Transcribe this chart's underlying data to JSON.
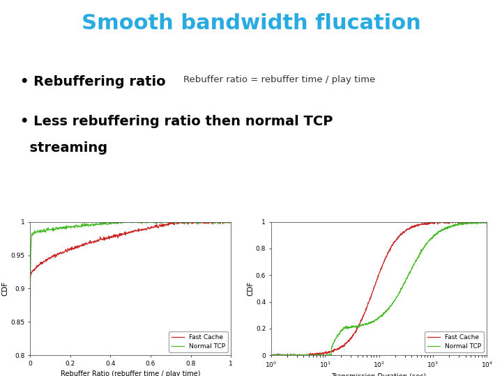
{
  "title": "Smooth bandwidth flucation",
  "title_color": "#29ABE2",
  "bullet1": "Rebuffering ratio",
  "bullet1_annotation": "Rebuffer ratio = rebuffer time / play time",
  "bullet2_line1": "Less rebuffering ratio then normal TCP",
  "bullet2_line2": "  streaming",
  "bullet_color": "#000000",
  "annotation_color": "#333333",
  "bg_color": "#ffffff",
  "plot1": {
    "xlabel": "Rebuffer Ratio (rebuffer time / play time)",
    "ylabel": "CDF",
    "xlim": [
      0,
      1
    ],
    "ylim": [
      0.8,
      1.0
    ],
    "yticks": [
      0.8,
      0.85,
      0.9,
      0.95,
      1.0
    ],
    "xticks": [
      0,
      0.2,
      0.4,
      0.6,
      0.8,
      1.0
    ],
    "fast_cache_color": "#cc2222",
    "normal_tcp_color": "#44bb22",
    "legend_labels": [
      "Fast Cache",
      "Normal TCP"
    ]
  },
  "plot2": {
    "xlabel": "Transmission Duration (sec)",
    "ylabel": "CDF",
    "xlim_log": [
      1,
      10000
    ],
    "ylim": [
      0,
      1.0
    ],
    "yticks": [
      0,
      0.2,
      0.4,
      0.6,
      0.8,
      1.0
    ],
    "fast_cache_color": "#cc2222",
    "normal_tcp_color": "#44bb22",
    "legend_labels": [
      "Fast Cache",
      "Normal TCP"
    ]
  }
}
